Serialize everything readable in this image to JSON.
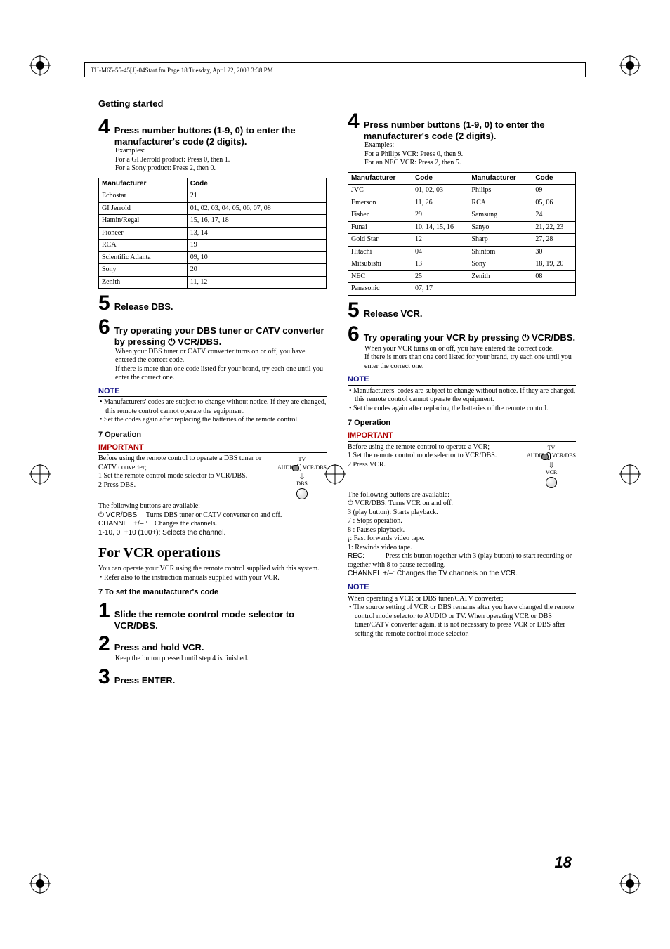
{
  "header_text": "TH-M65-55-45[J]-04Start.fm  Page 18  Tuesday, April 22, 2003  3:38 PM",
  "page_number": "18",
  "colors": {
    "note": "#1a1a8a",
    "important": "#b00000",
    "text": "#000000",
    "bg": "#ffffff"
  },
  "left": {
    "section_title": "Getting started",
    "step4_title": "Press number buttons (1-9, 0) to enter the manufacturer's code (2 digits).",
    "examples_label": "Examples:",
    "ex1": "For a GI Jerrold product: Press 0, then 1.",
    "ex2": "For a Sony product:        Press 2, then 0.",
    "table1": {
      "headers": [
        "Manufacturer",
        "Code"
      ],
      "rows": [
        [
          "Echostar",
          "21"
        ],
        [
          "GI Jerrold",
          "01, 02, 03, 04, 05, 06, 07, 08"
        ],
        [
          "Hamin/Regal",
          "15, 16, 17, 18"
        ],
        [
          "Pioneer",
          "13, 14"
        ],
        [
          "RCA",
          "19"
        ],
        [
          "Scientific Atlanta",
          "09, 10"
        ],
        [
          "Sony",
          "20"
        ],
        [
          "Zenith",
          "11, 12"
        ]
      ]
    },
    "step5_title": "Release DBS.",
    "step6_title": "Try operating your DBS tuner or CATV converter by pressing ⏻ VCR/DBS.",
    "step6_body1": "When your DBS tuner or CATV converter turns on or off, you have entered the correct code.",
    "step6_body2": "If there is more than one code listed for your brand, try each one until you enter the correct one.",
    "note_label": "NOTE",
    "note_b1": "Manufacturers' codes are subject to change without notice. If they are changed, this remote control cannot operate the equipment.",
    "note_b2": "Set the codes again after replacing the batteries of the remote control.",
    "operation_label": "7  Operation",
    "important_label": "IMPORTANT",
    "imp_line1": "Before using the remote control to operate a DBS tuner or CATV converter;",
    "imp_line2": "1   Set the remote control mode selector to VCR/DBS.",
    "imp_line3": "2   Press DBS.",
    "icon1": {
      "top": "TV",
      "left": "AUDIO",
      "right": "VCR/DBS",
      "bottom": "DBS"
    },
    "avail": "The following buttons are available:",
    "op_r1a": "⏻ VCR/DBS:",
    "op_r1b": "Turns DBS tuner or CATV converter on and off.",
    "op_r2a": "CHANNEL +/– :",
    "op_r2b": "Changes the channels.",
    "op_r3": "1-10, 0, +10 (100+): Selects the channel.",
    "vcr_heading": "For VCR operations",
    "vcr_intro": "You can operate your VCR using the remote control supplied with this system.",
    "vcr_bullet": "Refer also to the instruction manuals supplied with your VCR.",
    "mfr_head": "7  To set the manufacturer's code",
    "v_step1": "Slide the remote control mode selector to VCR/DBS.",
    "v_step2": "Press and hold VCR.",
    "v_step2_body": "Keep the button pressed until step 4 is finished.",
    "v_step3": "Press ENTER."
  },
  "right": {
    "step4_title": "Press number buttons (1-9, 0) to enter the manufacturer's code (2 digits).",
    "examples_label": "Examples:",
    "ex1": "For a Philips VCR: Press 0, then 9.",
    "ex2": "For an NEC VCR:  Press 2, then 5.",
    "table2": {
      "headers": [
        "Manufacturer",
        "Code",
        "Manufacturer",
        "Code"
      ],
      "rows": [
        [
          "JVC",
          "01, 02, 03",
          "Philips",
          "09"
        ],
        [
          "Emerson",
          "11, 26",
          "RCA",
          "05, 06"
        ],
        [
          "Fisher",
          "29",
          "Samsung",
          "24"
        ],
        [
          "Funai",
          "10, 14, 15, 16",
          "Sanyo",
          "21, 22, 23"
        ],
        [
          "Gold Star",
          "12",
          "Sharp",
          "27, 28"
        ],
        [
          "Hitachi",
          "04",
          "Shintom",
          "30"
        ],
        [
          "Mitsubishi",
          "13",
          "Sony",
          "18, 19, 20"
        ],
        [
          "NEC",
          "25",
          "Zenith",
          "08"
        ],
        [
          "Panasonic",
          "07, 17",
          "",
          ""
        ]
      ]
    },
    "step5_title": "Release VCR.",
    "step6_title": "Try operating your VCR by pressing ⏻ VCR/DBS.",
    "step6_body1": "When your VCR turns on or off, you have entered the correct code.",
    "step6_body2": "If there is more than one cord listed for your brand, try each one until you enter the correct one.",
    "note_label": "NOTE",
    "note_b1": "Manufacturers' codes are subject to change without notice. If they are changed, this remote control cannot operate the equipment.",
    "note_b2": "Set the codes again after replacing the batteries of the remote control.",
    "operation_label": "7  Operation",
    "important_label": "IMPORTANT",
    "imp_line1": "Before using the remote control to operate a VCR;",
    "imp_line2": "1   Set the remote control mode selector to VCR/DBS.",
    "imp_line3": "2   Press VCR.",
    "icon2": {
      "top": "TV",
      "left": "AUDIO",
      "right": "VCR/DBS",
      "bottom": "VCR"
    },
    "avail": "The following buttons are available:",
    "op_r1": "⏻ VCR/DBS:  Turns VCR on and off.",
    "op_r2": "3 (play button): Starts playback.",
    "op_r3": "7  :                    Stops operation.",
    "op_r4": "8  :                    Pauses playback.",
    "op_r5": "¡:                   Fast forwards video tape.",
    "op_r6": "1:                   Rewinds video tape.",
    "op_r7a": "REC:",
    "op_r7b": "Press this button together with 3 (play button) to start recording or together with 8 to pause recording.",
    "op_r8": "CHANNEL +/–: Changes the TV channels on the VCR.",
    "note2_label": "NOTE",
    "note2_line": "When operating a VCR or DBS tuner/CATV converter;",
    "note2_b1": "The source setting of VCR or DBS remains after you have changed the remote control mode selector to AUDIO or TV. When operating VCR or DBS tuner/CATV converter again, it is not necessary to press VCR or DBS after setting the remote control mode selector."
  }
}
